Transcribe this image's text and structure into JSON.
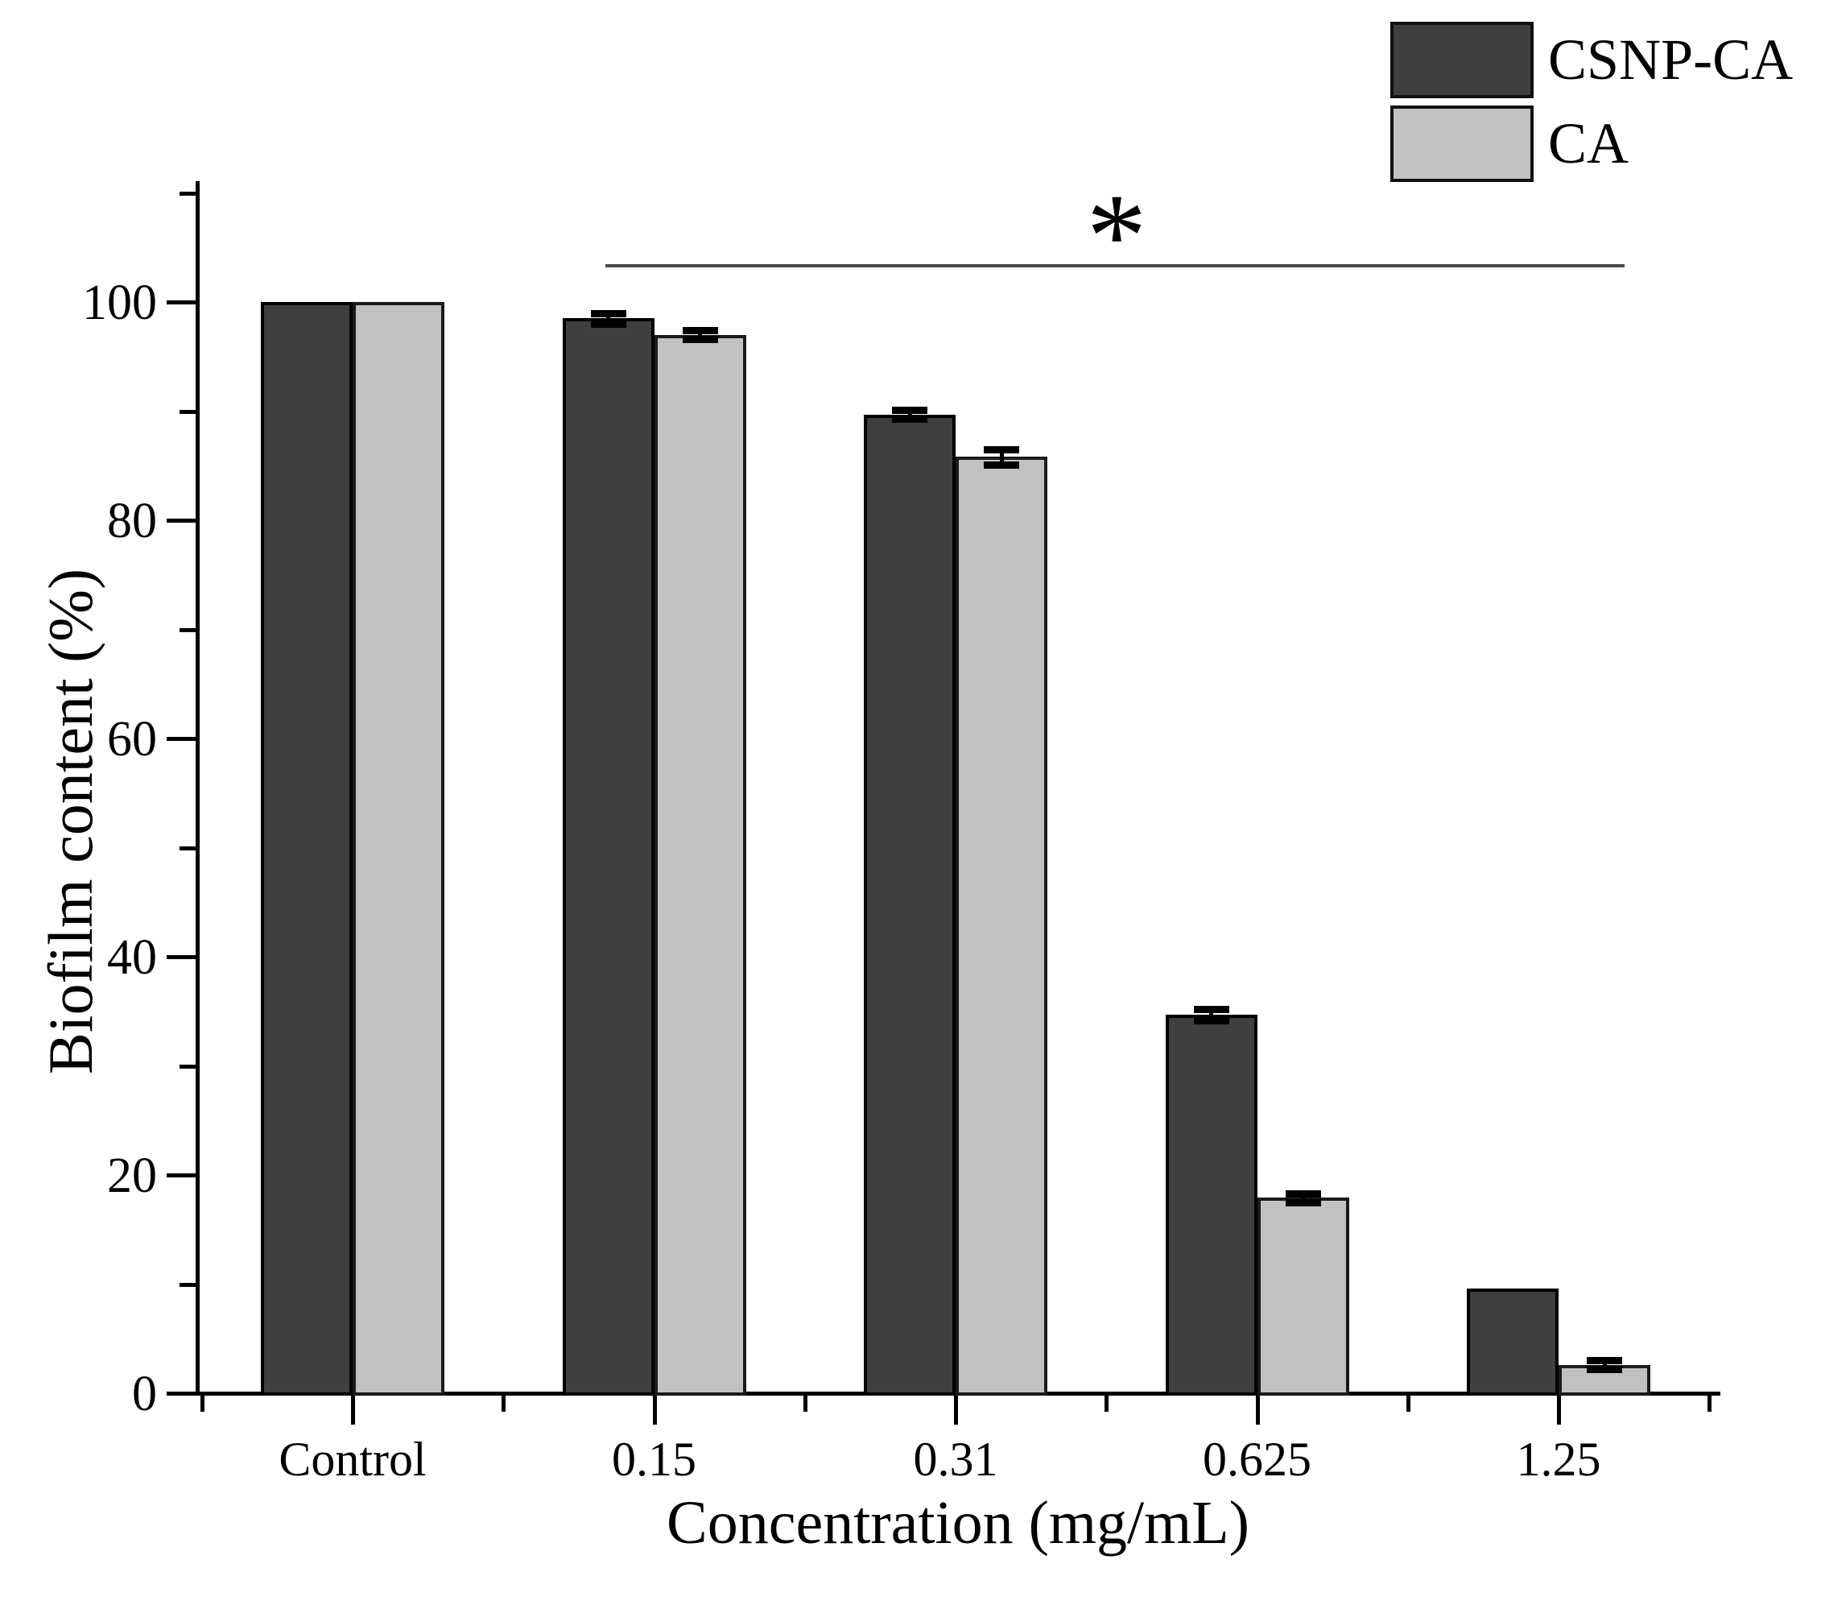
{
  "chart_data": {
    "type": "bar",
    "title": "",
    "xlabel": "Concentration (mg/mL)",
    "ylabel": "Biofilm content (%)",
    "categories": [
      "Control",
      "0.15",
      "0.31",
      "0.625",
      "1.25"
    ],
    "series": [
      {
        "name": "CSNP-CA",
        "color": "#3f3f3f",
        "edge_color": "#000000",
        "values": [
          100,
          98.5,
          89.7,
          34.7,
          9.6
        ],
        "errors": [
          0,
          0.5,
          0.4,
          0.5,
          0
        ]
      },
      {
        "name": "CA",
        "color": "#c1c1c1",
        "edge_color": "#1a1a1a",
        "values": [
          100,
          97.0,
          85.8,
          17.9,
          2.6
        ],
        "errors": [
          0,
          0.4,
          0.7,
          0.4,
          0.4
        ]
      }
    ],
    "ylim": [
      0,
      110
    ],
    "yticks": [
      0,
      20,
      40,
      60,
      80,
      100
    ],
    "yminor": [
      10,
      30,
      50,
      70,
      90,
      110
    ],
    "grid": false,
    "legend_position": "top-right",
    "background": "#ffffff",
    "annotation": {
      "symbol": "*",
      "line_color": "#4a4a4a",
      "from_category": "0.15",
      "to_category": "1.25"
    }
  }
}
